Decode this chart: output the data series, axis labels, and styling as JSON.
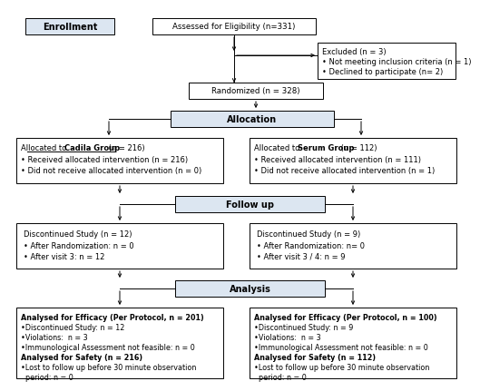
{
  "bg_color": "#ffffff",
  "header_fill": "#dce6f1",
  "plain_fill": "#ffffff",
  "edge_color": "#000000",
  "enrollment_label": "Enrollment",
  "assessed_text": "Assessed for Eligibility (n=331)",
  "excluded_lines": [
    "Excluded (n = 3)",
    "• Not meeting inclusion criteria (n = 1)",
    "• Declined to participate (n= 2)"
  ],
  "randomized_text": "Randomized (n = 328)",
  "allocation_label": "Allocation",
  "cadila_lines": [
    [
      "Allocated to ",
      "normal"
    ],
    [
      "Cadila Group",
      "bold"
    ],
    [
      " (n = 216)",
      "normal"
    ],
    [
      "\n• Received allocated intervention (n = 216)",
      "normal"
    ],
    [
      "\n• Did not receive allocated intervention (n = 0)",
      "normal"
    ]
  ],
  "serum_lines": [
    [
      "Allocated to ",
      "normal"
    ],
    [
      "Serum Group",
      "bold"
    ],
    [
      " (n = 112)",
      "normal"
    ],
    [
      "\n• Received allocated intervention (n = 111)",
      "normal"
    ],
    [
      "\n• Did not receive allocated intervention (n = 1)",
      "normal"
    ]
  ],
  "followup_label": "Follow up",
  "disc_cadila_lines": [
    "Discontinued Study (n = 12)",
    "• After Randomization: n = 0",
    "• After visit 3: n = 12"
  ],
  "disc_serum_lines": [
    "Discontinued Study (n = 9)",
    "• After Randomization: n= 0",
    "• After visit 3 / 4: n = 9"
  ],
  "analysis_label": "Analysis",
  "analysis_cadila_lines": [
    [
      "Analysed for Efficacy (Per Protocol, n = 201)",
      "bold"
    ],
    [
      "•Discontinued Study: n = 12",
      "normal"
    ],
    [
      "•Violations:  n = 3",
      "normal"
    ],
    [
      "•Immunological Assessment not feasible: n = 0",
      "normal"
    ],
    [
      "Analysed for Safety (n = 216)",
      "bold"
    ],
    [
      "•Lost to follow up before 30 minute observation",
      "normal"
    ],
    [
      "  period: n = 0",
      "normal"
    ]
  ],
  "analysis_serum_lines": [
    [
      "Analysed for Efficacy (Per Protocol, n = 100)",
      "bold"
    ],
    [
      "•Discontinued Study: n = 9",
      "normal"
    ],
    [
      "•Violations:  n = 3",
      "normal"
    ],
    [
      "•Immunological Assessment not feasible: n = 0",
      "normal"
    ],
    [
      "Analysed for Safety (n = 112)",
      "bold"
    ],
    [
      "•Lost to follow up before 30 minute observation",
      "normal"
    ],
    [
      "  period: n = 0",
      "normal"
    ]
  ]
}
